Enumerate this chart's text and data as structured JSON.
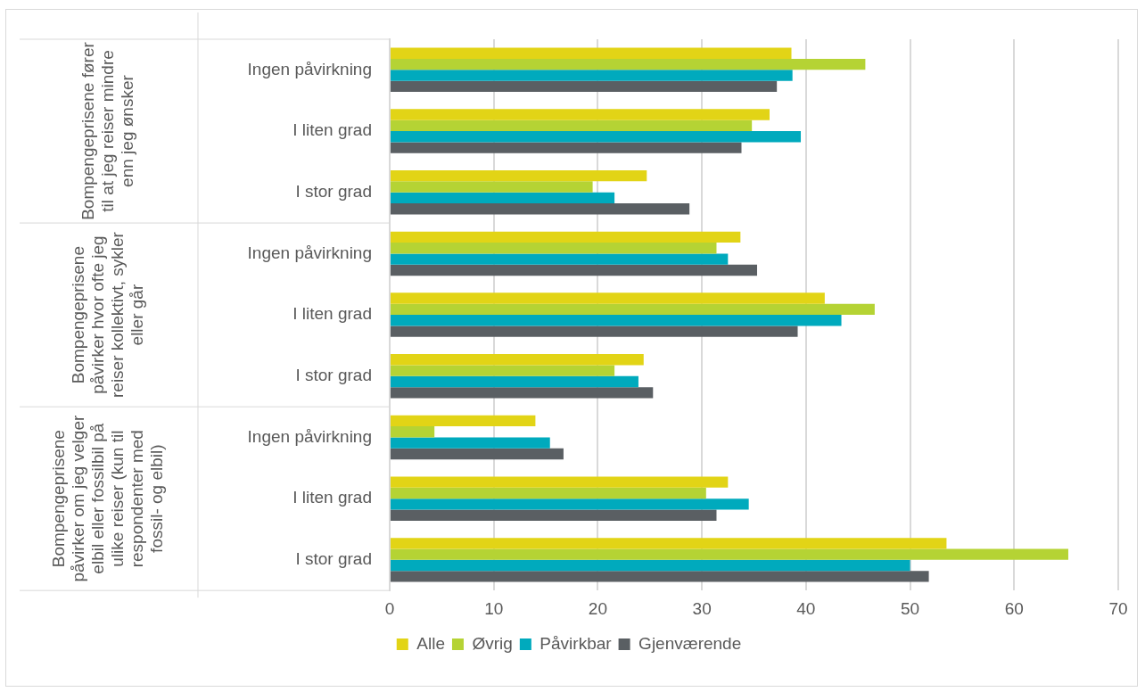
{
  "chart_data": {
    "type": "bar",
    "orientation": "horizontal",
    "categories": [
      "Ingen påvirkning",
      "I liten grad",
      "I stor grad",
      "Ingen påvirkning",
      "I liten grad",
      "I stor grad",
      "Ingen påvirkning",
      "I liten grad",
      "I stor grad"
    ],
    "series": [
      {
        "name": "Alle",
        "color": "#e2d416",
        "values": [
          38.6,
          36.5,
          24.7,
          33.7,
          41.8,
          24.4,
          14.0,
          32.5,
          53.5
        ]
      },
      {
        "name": "Øvrig",
        "color": "#b5d334",
        "values": [
          45.7,
          34.8,
          19.5,
          31.4,
          46.6,
          21.6,
          4.3,
          30.4,
          65.2
        ]
      },
      {
        "name": "Påvirkbar",
        "color": "#00aabd",
        "values": [
          38.7,
          39.5,
          21.6,
          32.5,
          43.4,
          23.9,
          15.4,
          34.5,
          50.0
        ]
      },
      {
        "name": "Gjenværende",
        "color": "#5a5f63",
        "values": [
          37.2,
          33.8,
          28.8,
          35.3,
          39.2,
          25.3,
          16.7,
          31.4,
          51.8
        ]
      }
    ],
    "annotations": [
      "Bompengeprisene fører til at jeg reiser mindre enn jeg ønsker",
      "Bompengeprisene påvirker hvor ofte jeg reiser kollektivt, sykler eller går",
      "Bompengeprisene påvirker om jeg velger elbil eller fossilbil på ulike reiser (kun til respondenter med fossil- og elbil)"
    ],
    "xlim": [
      0,
      70
    ],
    "xticks": [
      0,
      10,
      20,
      30,
      40,
      50,
      60,
      70
    ],
    "grid": "x",
    "legend": "bottom"
  }
}
